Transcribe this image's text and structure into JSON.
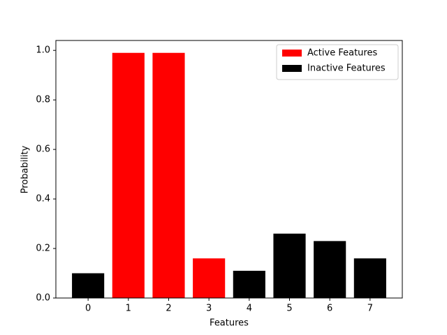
{
  "chart_data": {
    "type": "bar",
    "x_label": "Features",
    "y_label": "Probability",
    "categories": [
      "0",
      "1",
      "2",
      "3",
      "4",
      "5",
      "6",
      "7"
    ],
    "series": [
      {
        "name": "Active Features",
        "color": "#ff0000",
        "values": [
          null,
          0.99,
          0.99,
          0.16,
          null,
          null,
          null,
          null
        ]
      },
      {
        "name": "Inactive Features",
        "color": "#000000",
        "values": [
          0.1,
          null,
          null,
          null,
          0.11,
          0.26,
          0.23,
          0.16
        ]
      }
    ],
    "ylim": [
      0,
      1.04
    ],
    "yticks": [
      {
        "value": 0,
        "label": "0.0"
      },
      {
        "value": 0.2,
        "label": "0.2"
      },
      {
        "value": 0.4,
        "label": "0.4"
      },
      {
        "value": 0.6,
        "label": "0.6"
      },
      {
        "value": 0.8,
        "label": "0.8"
      },
      {
        "value": 1.0,
        "label": "1.0"
      }
    ],
    "legend": "upper right"
  }
}
